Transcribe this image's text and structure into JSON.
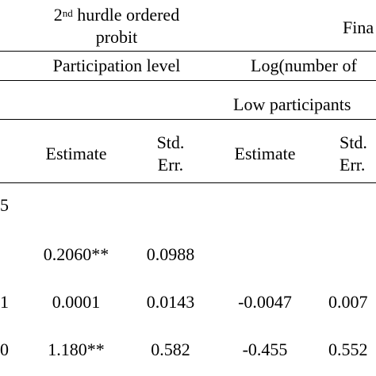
{
  "header": {
    "hurdle2_title_line1_sup": "nd",
    "hurdle2_title_line1_num": "2",
    "hurdle2_title_line1_rest": " hurdle ordered",
    "hurdle2_title_line2": "probit",
    "final_title_partial": "Fina",
    "participation_level": "Participation level",
    "log_number_partial": "Log(number of",
    "low_participants_partial": "Low participants"
  },
  "columns": {
    "estimate_1": "Estimate",
    "stderr_1_line1": "Std.",
    "stderr_1_line2": "Err.",
    "estimate_2": "Estimate",
    "stderr_2_line1": "Std.",
    "stderr_2_line2": "Err."
  },
  "rows": [
    {
      "label": "5",
      "est1": "",
      "se1": "",
      "est2": "",
      "se2": ""
    },
    {
      "label": "",
      "est1": "0.2060**",
      "se1": "0.0988",
      "est2": "",
      "se2": ""
    },
    {
      "label": "1",
      "est1": "0.0001",
      "se1": "0.0143",
      "est2": "-0.0047",
      "se2": "0.007"
    },
    {
      "label": "0",
      "est1": "1.180**",
      "se1": "0.582",
      "est2": "-0.455",
      "se2": "0.552"
    }
  ]
}
